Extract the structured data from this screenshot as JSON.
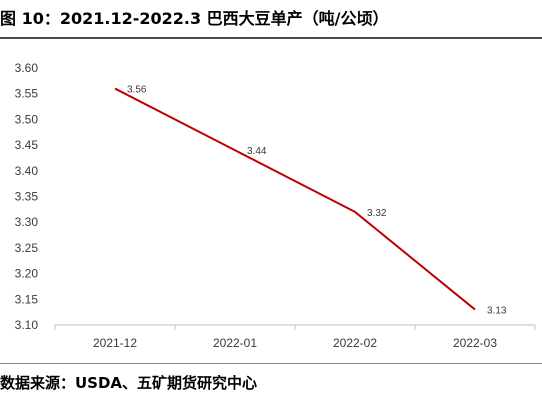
{
  "figure": {
    "title": "图 10：2021.12-2022.3 巴西大豆单产（吨/公顷）",
    "source": "数据来源：USDA、五矿期货研究中心"
  },
  "chart_data": {
    "type": "line",
    "categories": [
      "2021-12",
      "2022-01",
      "2022-02",
      "2022-03"
    ],
    "series": [
      {
        "values": [
          3.56,
          3.44,
          3.32,
          3.13
        ],
        "color": "#c00000"
      }
    ],
    "data_labels": [
      "3.56",
      "3.44",
      "3.32",
      "3.13"
    ],
    "yticks": [
      "3.10",
      "3.15",
      "3.20",
      "3.25",
      "3.30",
      "3.35",
      "3.40",
      "3.45",
      "3.50",
      "3.55",
      "3.60"
    ],
    "ylim": [
      3.1,
      3.6
    ],
    "grid": false,
    "legend": "none"
  }
}
